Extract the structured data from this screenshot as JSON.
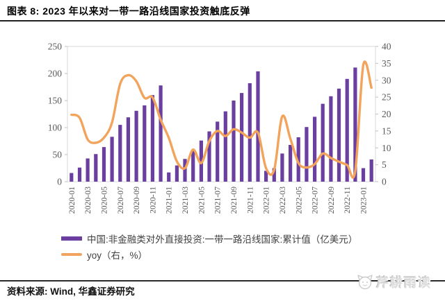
{
  "header": {
    "title": "图表 8: 2023 年以来对一带一路沿线国家投资触底反弹"
  },
  "footer": {
    "source": "资料来源: Wind, 华鑫证券研究"
  },
  "watermark": {
    "text": "芹耕雨读",
    "logo": "panda-face-logo"
  },
  "colors": {
    "bar": "#6B3FA0",
    "line": "#F2A35C",
    "axis_text": "#595959",
    "tick": "#bfbfbf",
    "plot_border": "#d9d9d9",
    "rule": "#1f1f1f",
    "watermark": "#dedede"
  },
  "legend": {
    "items": [
      {
        "series": "bar",
        "label": "中国:非金融类对外直接投资:一带一路沿线国家:累计值（亿美元）"
      },
      {
        "series": "line",
        "label": "yoy（右，%）"
      }
    ]
  },
  "chart_data": {
    "type": "bar+line combo",
    "grid": false,
    "legend_position": "bottom-left",
    "x_tick_step": 2,
    "categories": [
      "2020-01",
      "2020-02",
      "2020-03",
      "2020-04",
      "2020-05",
      "2020-06",
      "2020-07",
      "2020-08",
      "2020-09",
      "2020-10",
      "2020-11",
      "2020-12",
      "2021-01",
      "2021-02",
      "2021-03",
      "2021-04",
      "2021-05",
      "2021-06",
      "2021-07",
      "2021-08",
      "2021-09",
      "2021-10",
      "2021-11",
      "2021-12",
      "2022-01",
      "2022-02",
      "2022-03",
      "2022-04",
      "2022-05",
      "2022-06",
      "2022-07",
      "2022-08",
      "2022-09",
      "2022-10",
      "2022-11",
      "2022-12",
      "2023-01",
      "2023-02"
    ],
    "series": [
      {
        "name": "中国:非金融类对外直接投资:一带一路沿线国家:累计值（亿美元）",
        "type": "bar",
        "axis": "left",
        "values": [
          16,
          26,
          43,
          51,
          64,
          83,
          105,
          119,
          131,
          141,
          160,
          178,
          17,
          30,
          42,
          59,
          76,
          93,
          111,
          130,
          150,
          164,
          182,
          204,
          20,
          25,
          52,
          68,
          82,
          101,
          120,
          144,
          158,
          172,
          190,
          211,
          25,
          41
        ]
      },
      {
        "name": "yoy（右，%）",
        "type": "line",
        "smooth": true,
        "axis": "right",
        "values": [
          19.8,
          18.9,
          12.5,
          11.5,
          13,
          17.5,
          28.9,
          31.5,
          29.7,
          24.8,
          24.9,
          18.3,
          13,
          6,
          4,
          9.5,
          5.5,
          12,
          15,
          13.5,
          15.5,
          14.5,
          13,
          14.5,
          4,
          3.5,
          19.3,
          12.7,
          5.5,
          4.2,
          5.2,
          8.3,
          7,
          5.9,
          4.9,
          3.1,
          34.5,
          27.8
        ]
      }
    ],
    "left_axis": {
      "min": 0,
      "max": 250,
      "step": 50,
      "ticks": [
        0,
        50,
        100,
        150,
        200,
        250
      ]
    },
    "right_axis": {
      "min": 0,
      "max": 40,
      "step": 5,
      "ticks": [
        0,
        5,
        10,
        15,
        20,
        25,
        30,
        35,
        40
      ]
    }
  }
}
